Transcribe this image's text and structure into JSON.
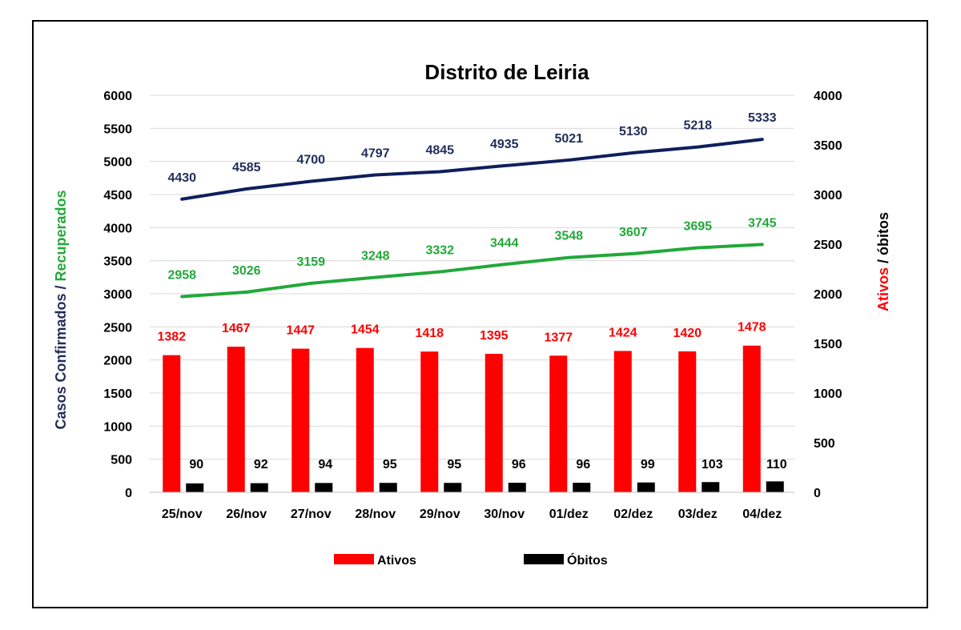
{
  "chart_data": {
    "type": "bar",
    "title": "Distrito de Leiria",
    "categories": [
      "25/nov",
      "26/nov",
      "27/nov",
      "28/nov",
      "29/nov",
      "30/nov",
      "01/dez",
      "02/dez",
      "03/dez",
      "04/dez"
    ],
    "left_axis": {
      "label_parts": [
        {
          "text": "Casos Confirmados",
          "color": "#1F2D5A"
        },
        {
          "text": " / ",
          "color": "#1F2D5A"
        },
        {
          "text": "Recuperados",
          "color": "#22A83A"
        }
      ],
      "ylim": [
        0,
        6000
      ],
      "ticks": [
        0,
        500,
        1000,
        1500,
        2000,
        2500,
        3000,
        3500,
        4000,
        4500,
        5000,
        5500,
        6000
      ]
    },
    "right_axis": {
      "label_parts": [
        {
          "text": "Ativos",
          "color": "#FF0000"
        },
        {
          "text": " / óbitos",
          "color": "#000000"
        }
      ],
      "ylim": [
        0,
        4000
      ],
      "ticks": [
        0,
        500,
        1000,
        1500,
        2000,
        2500,
        3000,
        3500,
        4000
      ]
    },
    "lines": [
      {
        "axis": "left",
        "color": "#0F1F5C",
        "label_color": "#1F2D5A",
        "values": [
          4430,
          4585,
          4700,
          4797,
          4845,
          4935,
          5021,
          5130,
          5218,
          5333
        ]
      },
      {
        "axis": "left",
        "color": "#22A83A",
        "label_color": "#22A83A",
        "values": [
          2958,
          3026,
          3159,
          3248,
          3332,
          3444,
          3548,
          3607,
          3695,
          3745
        ]
      }
    ],
    "series": [
      {
        "name": "Ativos",
        "axis": "right",
        "color": "#FF0000",
        "label_color": "#FF0000",
        "values": [
          1382,
          1467,
          1447,
          1454,
          1418,
          1395,
          1377,
          1424,
          1420,
          1478
        ]
      },
      {
        "name": "Óbitos",
        "axis": "right",
        "color": "#000000",
        "label_color": "#000000",
        "values": [
          90,
          92,
          94,
          95,
          95,
          96,
          96,
          99,
          103,
          110
        ]
      }
    ],
    "grid": true,
    "legend": "bottom"
  }
}
